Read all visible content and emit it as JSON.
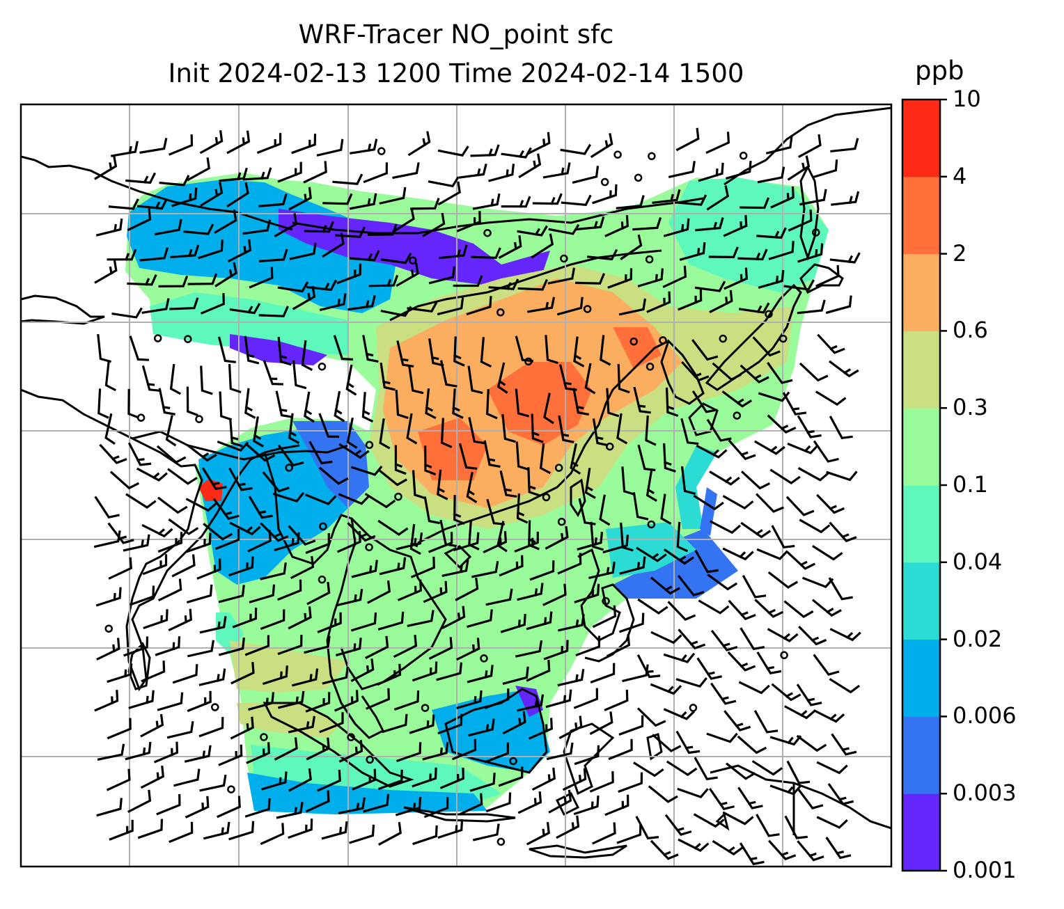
{
  "title": {
    "line1": "WRF-Tracer NO_point sfc",
    "line2": "Init 2024-02-13 1200 Time 2024-02-14 1500"
  },
  "colorbar": {
    "unit": "ppb",
    "ticks": [
      "0.001",
      "0.003",
      "0.006",
      "0.02",
      "0.04",
      "0.1",
      "0.3",
      "0.6",
      "2",
      "4",
      "10"
    ],
    "colors": [
      "#6426fa",
      "#3474f2",
      "#00aeeb",
      "#2ddbd5",
      "#5ff8bc",
      "#9afb9b",
      "#cade82",
      "#fbae60",
      "#ff703a",
      "#ff2a15"
    ]
  },
  "map": {
    "gridlines": true,
    "features": [
      "coastlines",
      "country-borders",
      "wind-barbs",
      "tracer-concentration-field"
    ]
  }
}
